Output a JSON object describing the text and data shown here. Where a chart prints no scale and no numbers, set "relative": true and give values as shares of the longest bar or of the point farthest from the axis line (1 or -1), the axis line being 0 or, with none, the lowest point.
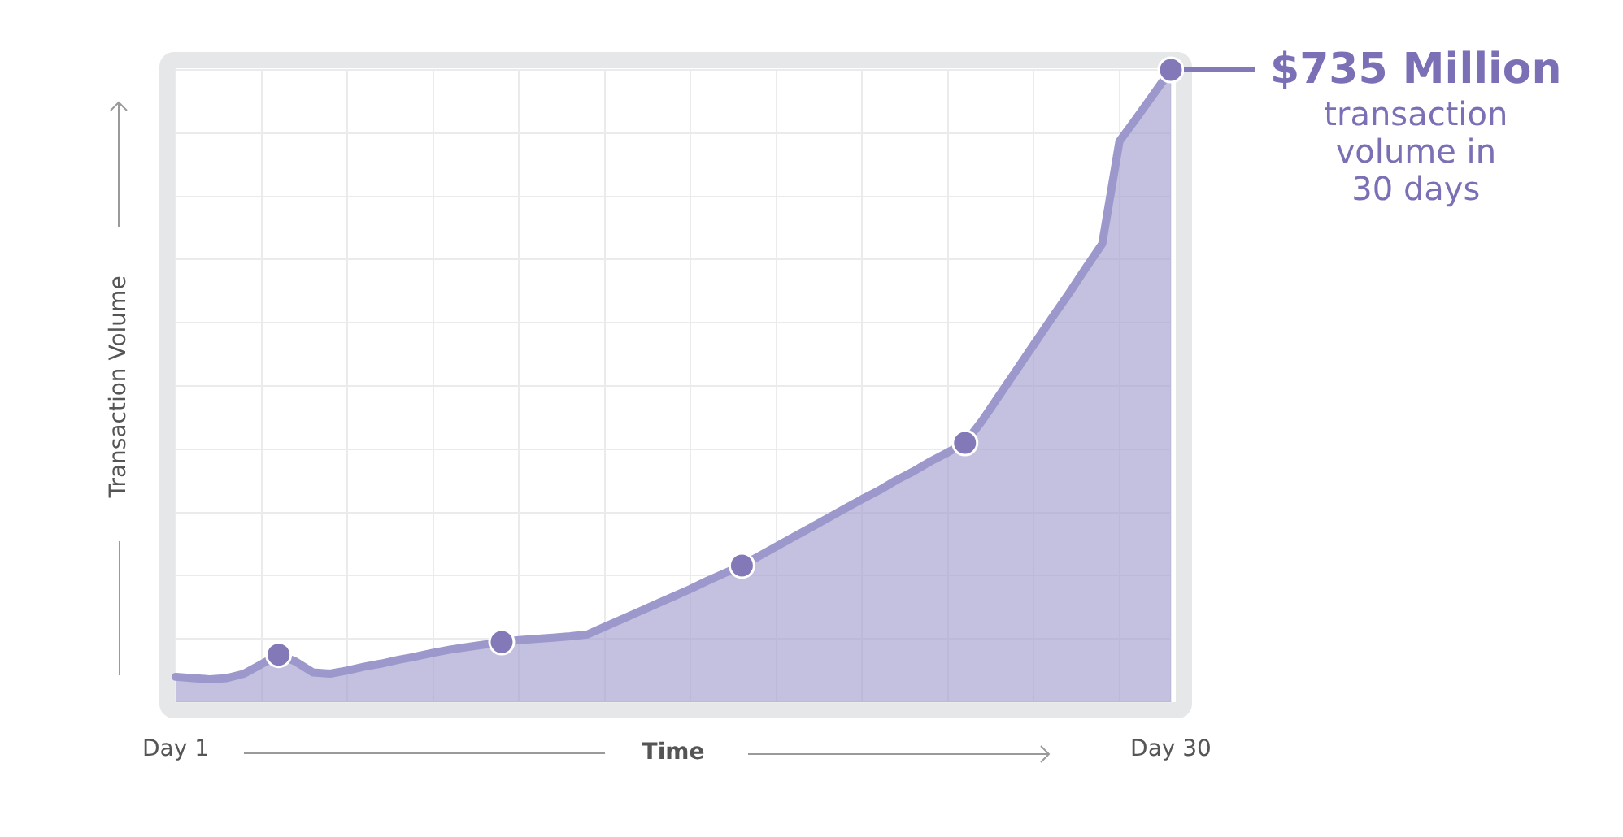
{
  "chart_data": {
    "type": "area",
    "xlabel": "Time",
    "ylabel": "Transaction Volume",
    "categories": [
      "Day 1",
      null,
      null,
      null,
      null,
      null,
      null,
      null,
      null,
      null,
      null,
      null,
      null,
      null,
      null,
      null,
      null,
      null,
      null,
      null,
      null,
      null,
      null,
      null,
      null,
      null,
      null,
      null,
      null,
      null,
      null,
      null,
      null,
      null,
      null,
      null,
      null,
      null,
      null,
      null,
      null,
      null,
      null,
      null,
      null,
      null,
      null,
      null,
      null,
      null,
      null,
      null,
      null,
      null,
      null,
      null,
      null,
      null,
      "Day 30"
    ],
    "series": [
      {
        "color": "#9d98cb",
        "marker": "none",
        "values": [
          0.04,
          0.038,
          0.036,
          0.038,
          0.045,
          0.06,
          0.075,
          0.064,
          0.047,
          0.045,
          0.05,
          0.056,
          0.061,
          0.067,
          0.072,
          0.078,
          0.083,
          0.087,
          0.091,
          0.095,
          0.098,
          0.1,
          0.102,
          0.104,
          0.107,
          0.119,
          0.131,
          0.143,
          0.155,
          0.167,
          0.179,
          0.192,
          0.204,
          0.216,
          0.231,
          0.246,
          0.261,
          0.276,
          0.291,
          0.306,
          0.321,
          0.335,
          0.351,
          0.365,
          0.381,
          0.395,
          0.41,
          0.445,
          0.485,
          0.525,
          0.565,
          0.605,
          0.644,
          0.685,
          0.725,
          0.887,
          0.924,
          0.962,
          1
        ]
      },
      {
        "type": "scatter",
        "color": "#8479b8",
        "marker": "circle",
        "values": [
          null,
          null,
          null,
          null,
          null,
          null,
          0.075,
          null,
          null,
          null,
          null,
          null,
          null,
          null,
          null,
          null,
          null,
          null,
          null,
          0.095,
          null,
          null,
          null,
          null,
          null,
          null,
          null,
          null,
          null,
          null,
          null,
          null,
          null,
          0.216,
          null,
          null,
          null,
          null,
          null,
          null,
          null,
          null,
          null,
          null,
          null,
          null,
          0.41,
          null,
          null,
          null,
          null,
          null,
          null,
          null,
          null,
          null,
          null,
          null,
          1
        ]
      }
    ],
    "relative": true,
    "grid": true,
    "annotations": [
      {
        "text": "$735 Million",
        "x": "Day 30",
        "y": 1
      },
      "transaction volume in 30 days"
    ]
  }
}
